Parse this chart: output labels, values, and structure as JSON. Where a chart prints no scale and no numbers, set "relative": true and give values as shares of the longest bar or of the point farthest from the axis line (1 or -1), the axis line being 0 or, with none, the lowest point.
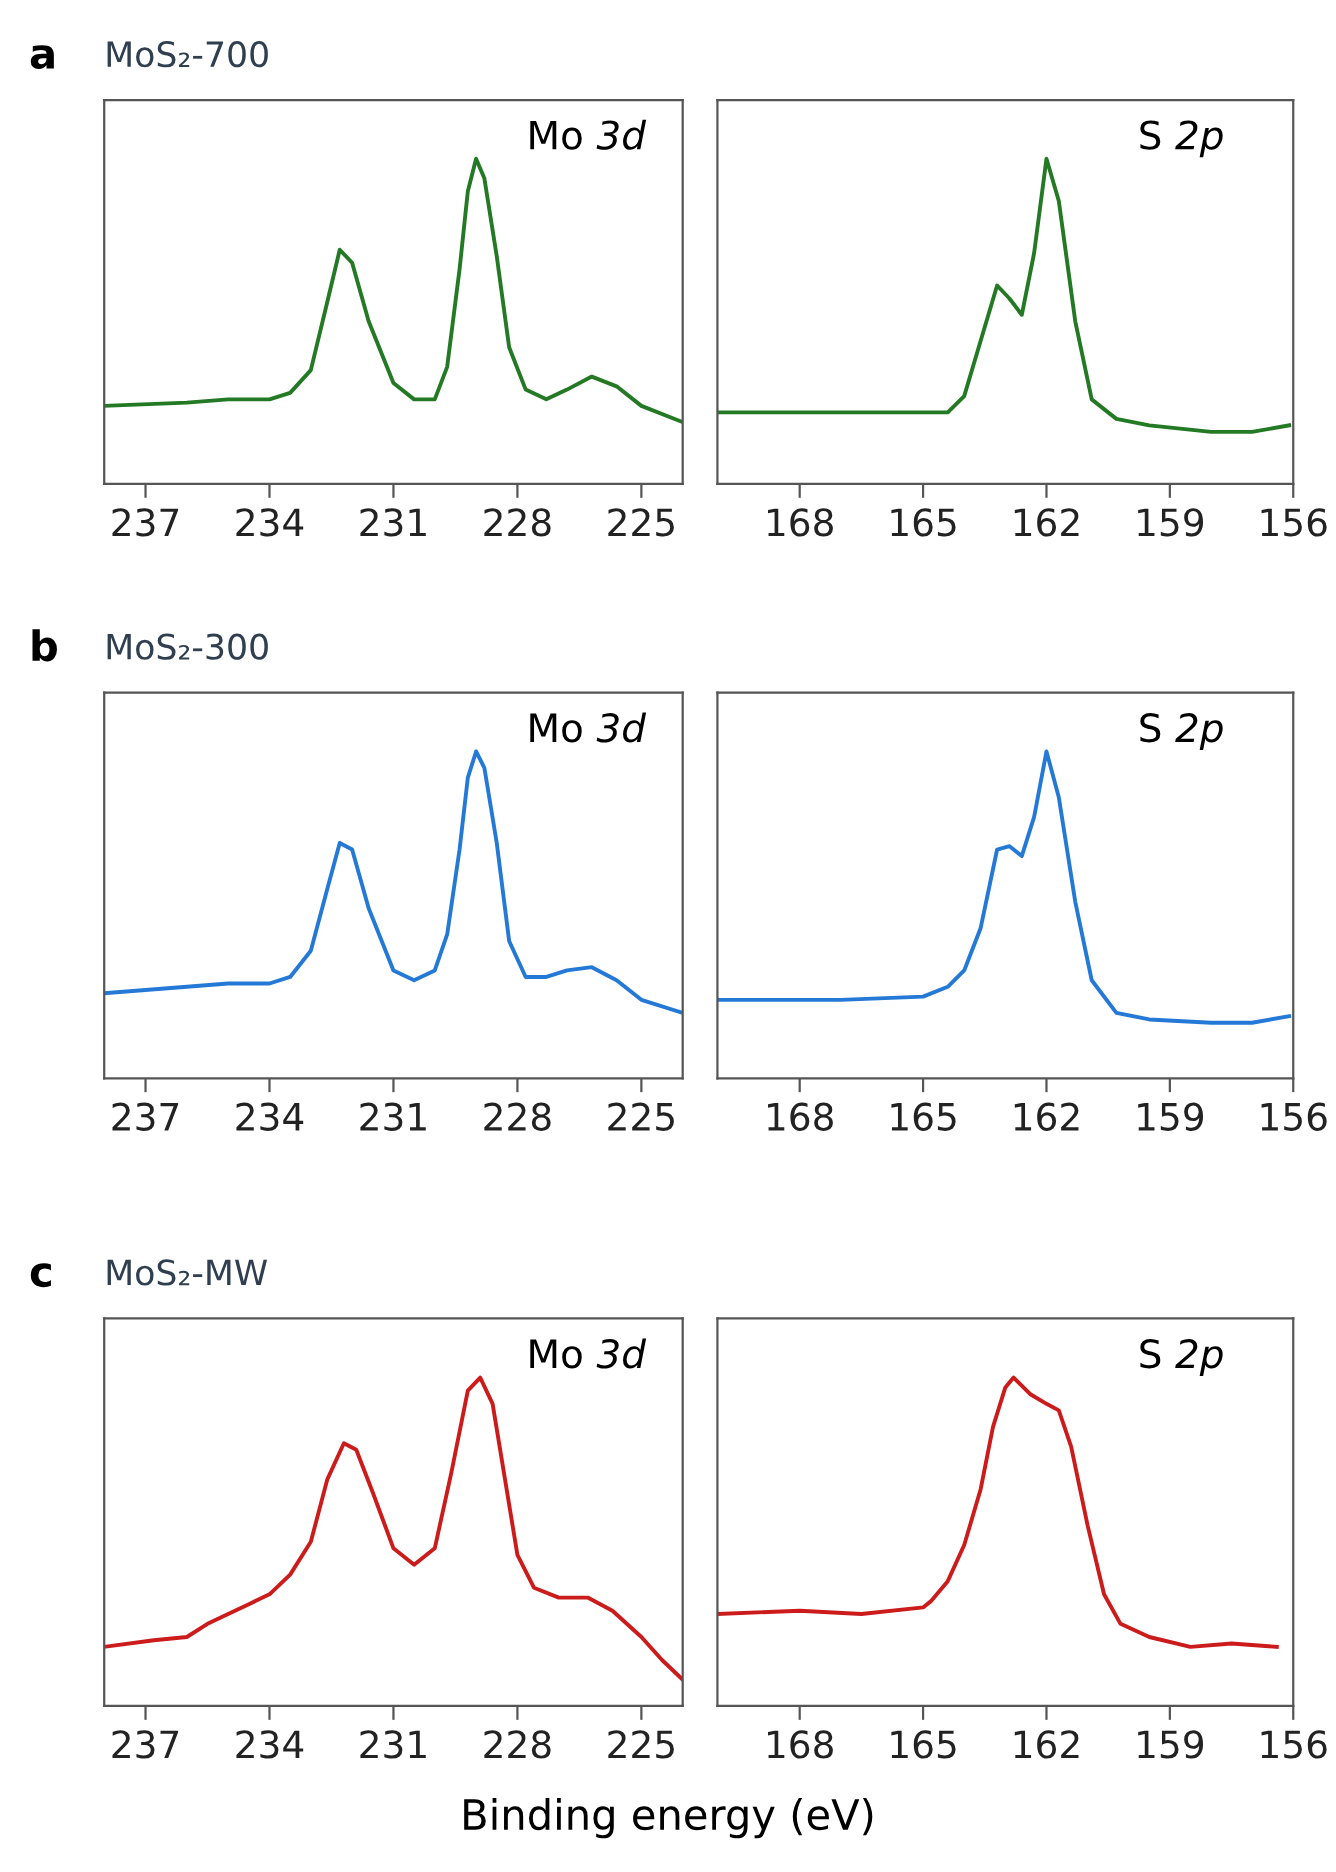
{
  "chart_data": [
    {
      "type": "line",
      "title": "MoS₂-700",
      "annotations": [
        "a",
        "Mo 3d"
      ],
      "relative": true,
      "tick_labels": "x",
      "grid": false,
      "xlim": [
        238,
        224
      ],
      "xticks": [
        237,
        234,
        231,
        228,
        225
      ],
      "x": [
        238.0,
        236.0,
        235.0,
        234.0,
        233.5,
        233.0,
        232.6,
        232.3,
        232.0,
        231.6,
        231.0,
        230.5,
        230.0,
        229.7,
        229.4,
        229.2,
        229.0,
        228.8,
        228.5,
        228.2,
        227.8,
        227.3,
        226.8,
        226.2,
        225.6,
        225.0,
        224.0
      ],
      "series": [
        {
          "color": "#247a24",
          "values": [
            0.24,
            0.25,
            0.26,
            0.26,
            0.28,
            0.35,
            0.56,
            0.72,
            0.68,
            0.5,
            0.31,
            0.26,
            0.26,
            0.36,
            0.66,
            0.9,
            1.0,
            0.94,
            0.7,
            0.42,
            0.29,
            0.26,
            0.29,
            0.33,
            0.3,
            0.24,
            0.19
          ]
        }
      ]
    },
    {
      "type": "line",
      "annotations": [
        "S 2p"
      ],
      "relative": true,
      "tick_labels": "x",
      "grid": false,
      "xlim": [
        170,
        156
      ],
      "xticks": [
        168,
        165,
        162,
        159,
        156
      ],
      "x": [
        170.0,
        167.0,
        165.0,
        164.4,
        164.0,
        163.6,
        163.2,
        162.9,
        162.6,
        162.3,
        162.0,
        161.7,
        161.3,
        160.9,
        160.3,
        159.5,
        158.0,
        157.0,
        156.1
      ],
      "series": [
        {
          "color": "#247a24",
          "values": [
            0.22,
            0.22,
            0.22,
            0.22,
            0.27,
            0.44,
            0.61,
            0.57,
            0.52,
            0.71,
            1.0,
            0.87,
            0.5,
            0.26,
            0.2,
            0.18,
            0.16,
            0.16,
            0.18
          ]
        }
      ]
    },
    {
      "type": "line",
      "title": "MoS₂-300",
      "annotations": [
        "b",
        "Mo 3d"
      ],
      "relative": true,
      "tick_labels": "x",
      "grid": false,
      "xlim": [
        238,
        224
      ],
      "xticks": [
        237,
        234,
        231,
        228,
        225
      ],
      "x": [
        238.0,
        236.0,
        235.0,
        234.0,
        233.5,
        233.0,
        232.6,
        232.3,
        232.0,
        231.6,
        231.0,
        230.5,
        230.0,
        229.7,
        229.4,
        229.2,
        229.0,
        228.8,
        228.5,
        228.2,
        227.8,
        227.3,
        226.8,
        226.2,
        225.6,
        225.0,
        224.0
      ],
      "series": [
        {
          "color": "#2479d6",
          "values": [
            0.26,
            0.28,
            0.29,
            0.29,
            0.31,
            0.39,
            0.58,
            0.72,
            0.7,
            0.52,
            0.33,
            0.3,
            0.33,
            0.44,
            0.7,
            0.92,
            1.0,
            0.95,
            0.72,
            0.42,
            0.31,
            0.31,
            0.33,
            0.34,
            0.3,
            0.24,
            0.2
          ]
        }
      ]
    },
    {
      "type": "line",
      "annotations": [
        "S 2p"
      ],
      "relative": true,
      "tick_labels": "x",
      "grid": false,
      "xlim": [
        170,
        156
      ],
      "xticks": [
        168,
        165,
        162,
        159,
        156
      ],
      "x": [
        170.0,
        167.0,
        165.0,
        164.4,
        164.0,
        163.6,
        163.2,
        162.9,
        162.6,
        162.3,
        162.0,
        161.7,
        161.3,
        160.9,
        160.3,
        159.5,
        158.0,
        157.0,
        156.1
      ],
      "series": [
        {
          "color": "#2479d6",
          "values": [
            0.24,
            0.24,
            0.25,
            0.28,
            0.33,
            0.46,
            0.7,
            0.71,
            0.68,
            0.8,
            1.0,
            0.86,
            0.54,
            0.3,
            0.2,
            0.18,
            0.17,
            0.17,
            0.19
          ]
        }
      ]
    },
    {
      "type": "line",
      "title": "MoS₂-MW",
      "annotations": [
        "c",
        "Mo 3d"
      ],
      "relative": true,
      "tick_labels": "x",
      "grid": false,
      "xlim": [
        238,
        224
      ],
      "xticks": [
        237,
        234,
        231,
        228,
        225
      ],
      "x": [
        238.0,
        236.8,
        236.0,
        235.5,
        235.0,
        234.5,
        234.0,
        233.5,
        233.0,
        232.6,
        232.2,
        231.9,
        231.5,
        231.0,
        230.5,
        230.0,
        229.6,
        229.2,
        228.9,
        228.6,
        228.3,
        228.0,
        227.6,
        227.0,
        226.3,
        225.7,
        225.0,
        224.5,
        224.0
      ],
      "series": [
        {
          "color": "#cc1b1b",
          "values": [
            0.18,
            0.2,
            0.21,
            0.25,
            0.28,
            0.31,
            0.34,
            0.4,
            0.5,
            0.69,
            0.8,
            0.78,
            0.65,
            0.48,
            0.43,
            0.48,
            0.71,
            0.96,
            1.0,
            0.92,
            0.69,
            0.46,
            0.36,
            0.33,
            0.33,
            0.29,
            0.21,
            0.14,
            0.08
          ]
        }
      ]
    },
    {
      "type": "line",
      "annotations": [
        "S 2p"
      ],
      "xlabel": "Binding energy (eV)",
      "relative": true,
      "tick_labels": "x",
      "grid": false,
      "xlim": [
        170,
        156
      ],
      "xticks": [
        168,
        165,
        162,
        159,
        156
      ],
      "x": [
        170.0,
        168.0,
        166.5,
        165.0,
        164.8,
        164.4,
        164.0,
        163.6,
        163.3,
        163.0,
        162.8,
        162.4,
        162.0,
        161.7,
        161.4,
        161.0,
        160.6,
        160.2,
        159.5,
        158.5,
        157.5,
        156.4
      ],
      "series": [
        {
          "color": "#cc1b1b",
          "values": [
            0.28,
            0.29,
            0.28,
            0.3,
            0.32,
            0.38,
            0.49,
            0.66,
            0.85,
            0.97,
            1.0,
            0.95,
            0.92,
            0.9,
            0.79,
            0.55,
            0.34,
            0.25,
            0.21,
            0.18,
            0.19,
            0.18
          ]
        }
      ]
    }
  ]
}
